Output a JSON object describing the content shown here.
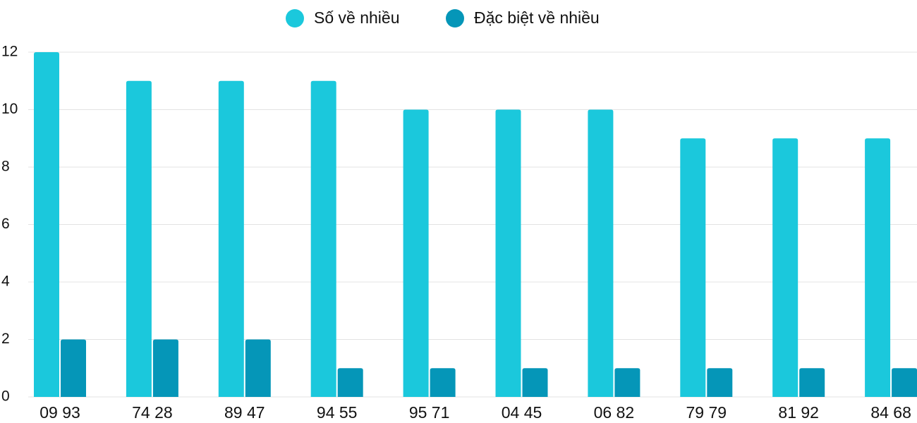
{
  "chart_data": {
    "type": "bar",
    "categories": [
      "09 93",
      "74 28",
      "89 47",
      "94 55",
      "95 71",
      "04 45",
      "06 82",
      "79 79",
      "81 92",
      "84 68"
    ],
    "series": [
      {
        "name": "Số về nhiều",
        "color": "#1bc8dc",
        "values": [
          12,
          11,
          11,
          11,
          10,
          10,
          10,
          9,
          9,
          9
        ]
      },
      {
        "name": "Đặc biệt về nhiều",
        "color": "#0596b8",
        "values": [
          2,
          2,
          2,
          1,
          1,
          1,
          1,
          1,
          1,
          1
        ]
      }
    ],
    "ylim": [
      0,
      12
    ],
    "yticks": [
      0,
      2,
      4,
      6,
      8,
      10,
      12
    ],
    "grid": true
  }
}
